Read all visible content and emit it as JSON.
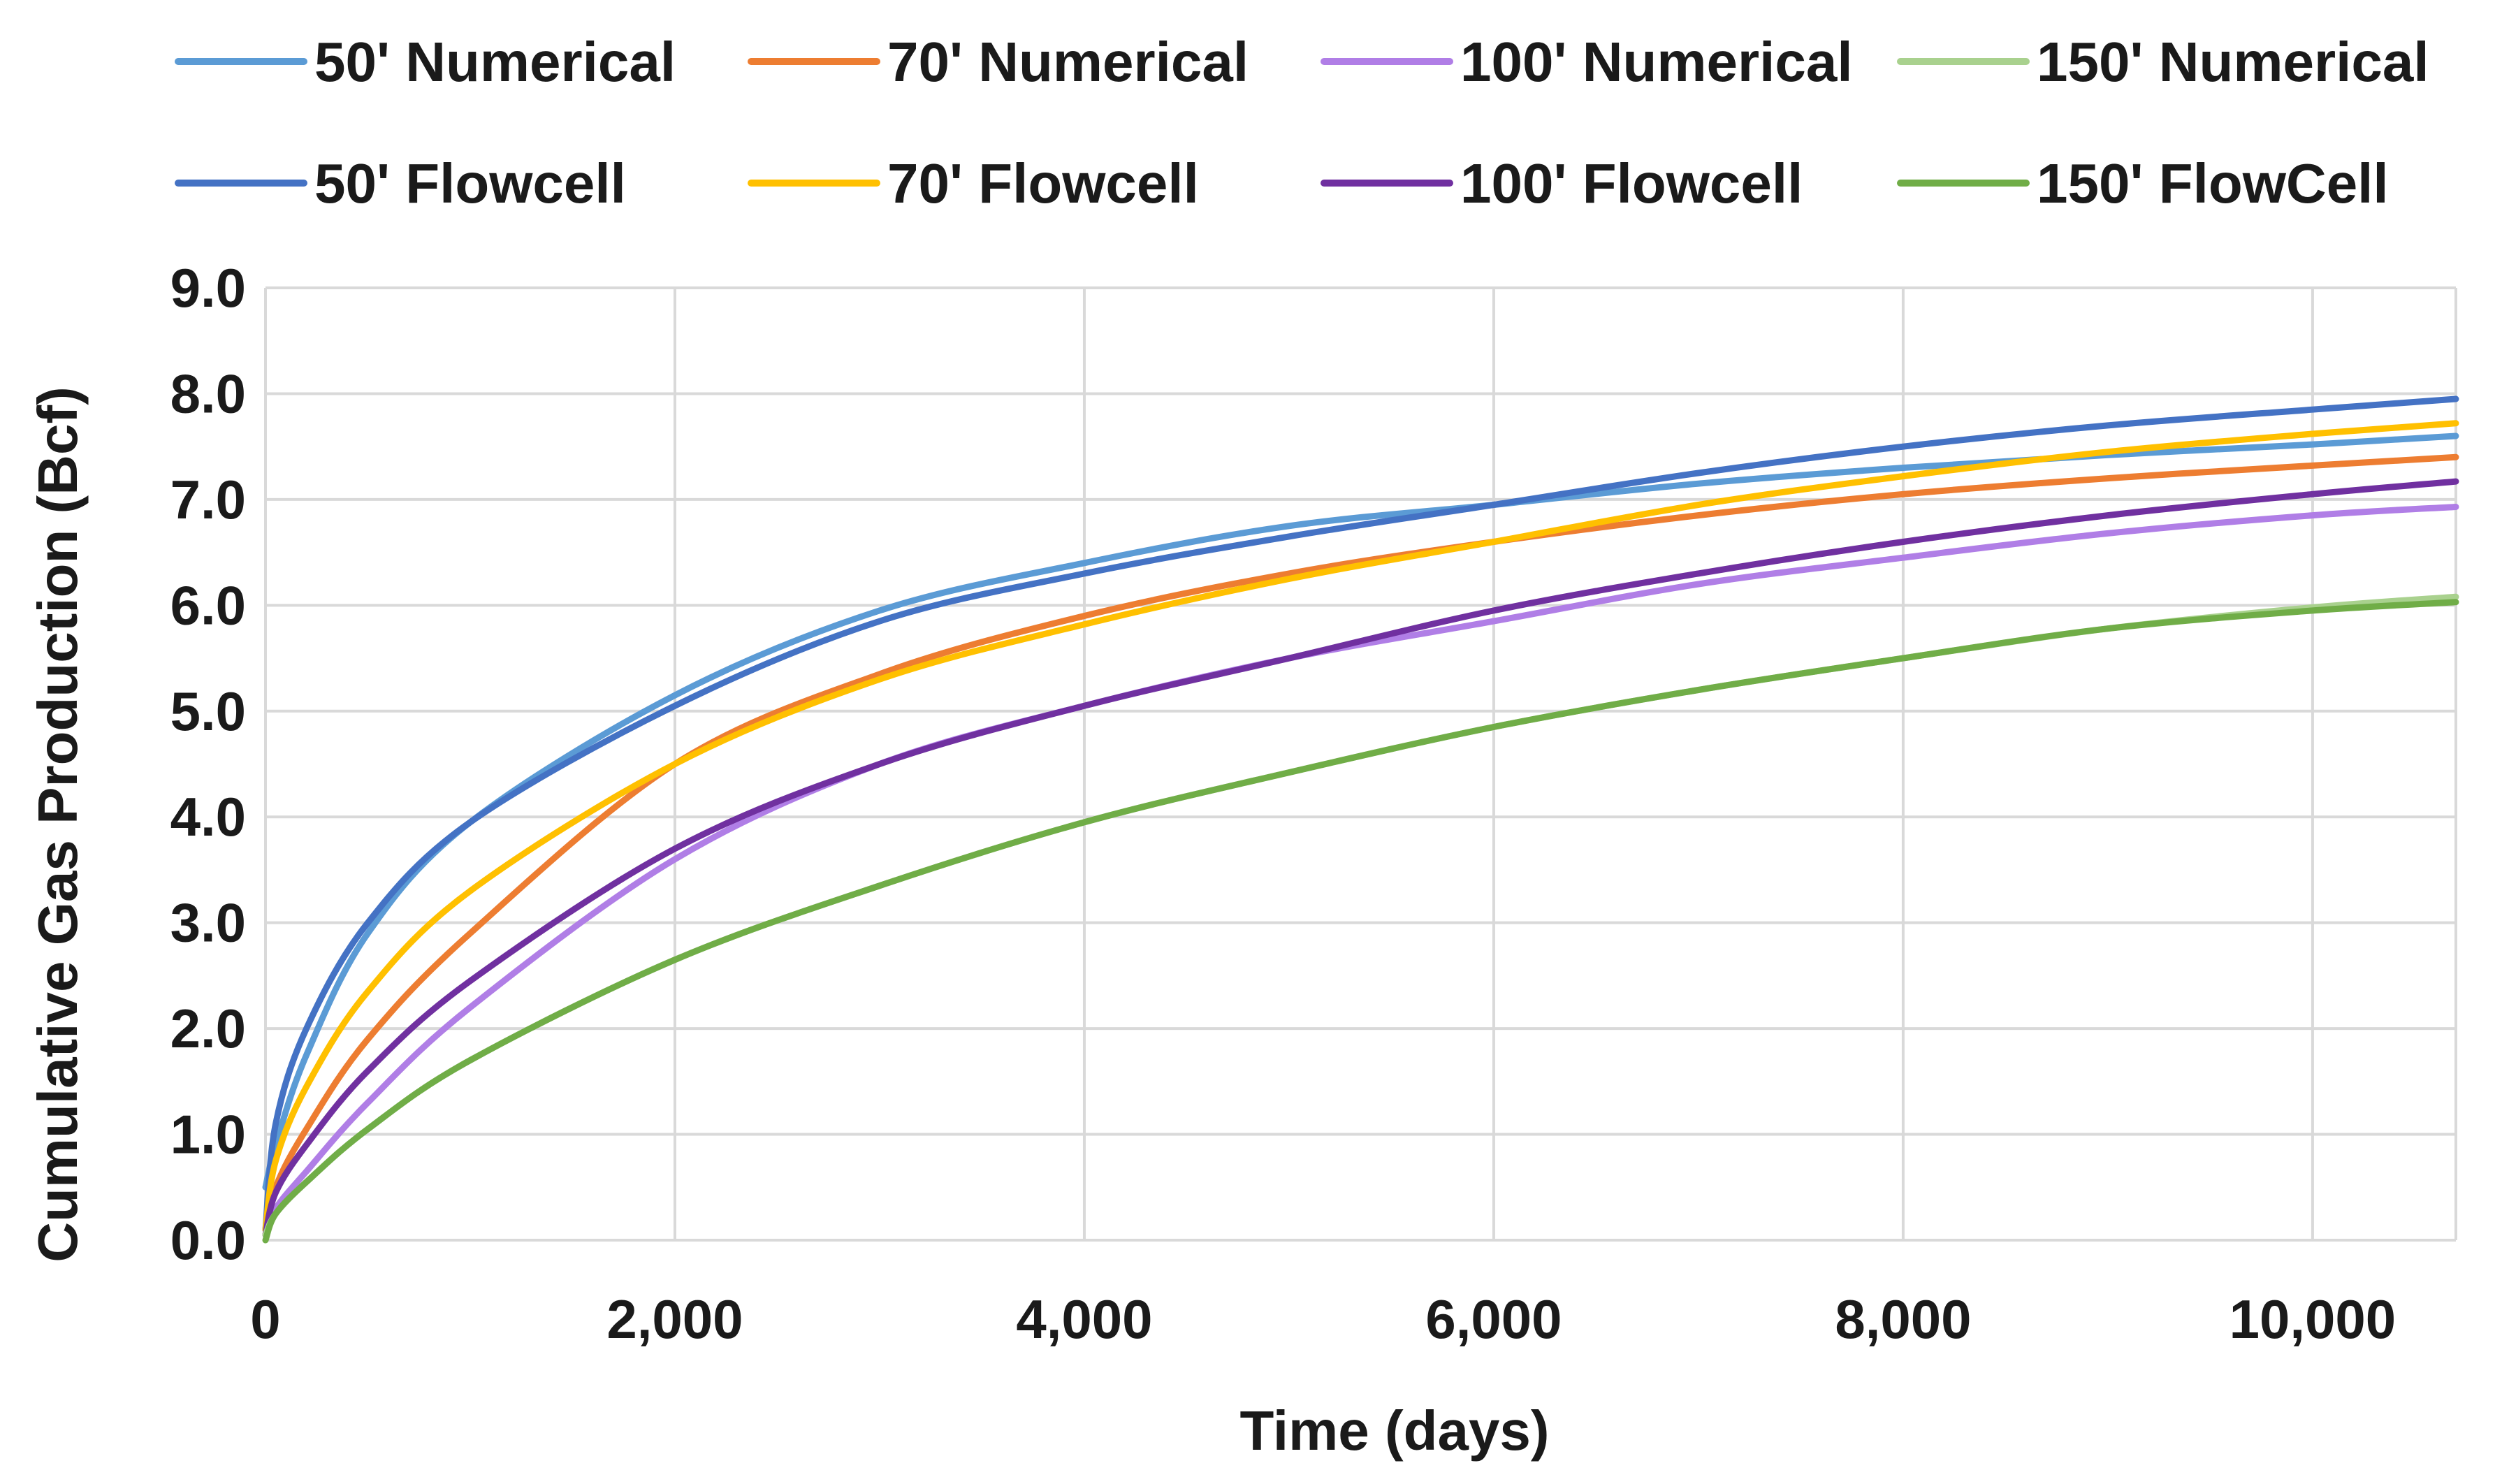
{
  "chart_data": {
    "type": "line",
    "title": "",
    "xlabel": "Time (days)",
    "ylabel": "Cumulative Gas Production (Bcf)",
    "xlim": [
      0,
      10700
    ],
    "ylim": [
      0,
      9
    ],
    "grid": true,
    "legend_position": "top",
    "x_ticks": [
      0,
      2000,
      4000,
      6000,
      8000,
      10000
    ],
    "x_tick_labels": [
      "0",
      "2,000",
      "4,000",
      "6,000",
      "8,000",
      "10,000"
    ],
    "y_ticks": [
      0,
      1,
      2,
      3,
      4,
      5,
      6,
      7,
      8,
      9
    ],
    "y_tick_labels": [
      "0.0",
      "1.0",
      "2.0",
      "3.0",
      "4.0",
      "5.0",
      "6.0",
      "7.0",
      "8.0",
      "9.0"
    ],
    "series": [
      {
        "name": "50' Numerical",
        "color": "#5b9bd5",
        "x": [
          0,
          50,
          200,
          500,
          1000,
          2000,
          3000,
          4000,
          5000,
          6000,
          7000,
          8000,
          9000,
          10000,
          10700
        ],
        "y": [
          0.5,
          0.9,
          1.75,
          2.9,
          3.95,
          5.15,
          5.95,
          6.4,
          6.75,
          6.95,
          7.15,
          7.3,
          7.42,
          7.52,
          7.6
        ]
      },
      {
        "name": "70' Numerical",
        "color": "#ed7d31",
        "x": [
          0,
          50,
          200,
          500,
          1000,
          2000,
          3000,
          4000,
          5000,
          6000,
          7000,
          8000,
          9000,
          10000,
          10700
        ],
        "y": [
          0.05,
          0.5,
          1.05,
          1.9,
          2.9,
          4.5,
          5.35,
          5.9,
          6.3,
          6.6,
          6.85,
          7.05,
          7.2,
          7.32,
          7.4
        ]
      },
      {
        "name": "100' Numerical",
        "color": "#b07ee6",
        "x": [
          0,
          50,
          200,
          500,
          1000,
          2000,
          3000,
          4000,
          5000,
          6000,
          7000,
          8000,
          9000,
          10000,
          10700
        ],
        "y": [
          0.05,
          0.3,
          0.65,
          1.3,
          2.2,
          3.6,
          4.5,
          5.05,
          5.5,
          5.85,
          6.2,
          6.45,
          6.68,
          6.85,
          6.93
        ]
      },
      {
        "name": "150' Numerical",
        "color": "#a9d18e",
        "x": [
          0,
          50,
          200,
          500,
          1000,
          2000,
          3000,
          4000,
          5000,
          6000,
          7000,
          8000,
          9000,
          10000,
          10700
        ],
        "y": [
          0.05,
          0.25,
          0.55,
          1.05,
          1.7,
          2.65,
          3.35,
          3.95,
          4.42,
          4.85,
          5.2,
          5.5,
          5.78,
          5.98,
          6.08
        ]
      },
      {
        "name": "50' Flowcell",
        "color": "#4472c4",
        "x": [
          0,
          50,
          200,
          500,
          1000,
          2000,
          3000,
          4000,
          5000,
          6000,
          7000,
          8000,
          9000,
          10000,
          10700
        ],
        "y": [
          0.1,
          1.1,
          2.0,
          3.0,
          3.95,
          5.05,
          5.85,
          6.3,
          6.65,
          6.95,
          7.25,
          7.5,
          7.7,
          7.85,
          7.95
        ]
      },
      {
        "name": "70' Flowcell",
        "color": "#ffc000",
        "x": [
          0,
          50,
          200,
          500,
          1000,
          2000,
          3000,
          4000,
          5000,
          6000,
          7000,
          8000,
          9000,
          10000,
          10700
        ],
        "y": [
          0.1,
          0.75,
          1.45,
          2.35,
          3.3,
          4.5,
          5.3,
          5.82,
          6.25,
          6.6,
          6.95,
          7.22,
          7.45,
          7.62,
          7.72
        ]
      },
      {
        "name": "100' Flowcell",
        "color": "#7030a0",
        "x": [
          0,
          50,
          200,
          500,
          1000,
          2000,
          3000,
          4000,
          5000,
          6000,
          7000,
          8000,
          9000,
          10000,
          10700
        ],
        "y": [
          0.05,
          0.45,
          0.9,
          1.6,
          2.45,
          3.7,
          4.5,
          5.05,
          5.5,
          5.95,
          6.3,
          6.6,
          6.85,
          7.05,
          7.17
        ]
      },
      {
        "name": "150' FlowCell",
        "color": "#70ad47",
        "x": [
          0,
          50,
          200,
          500,
          1000,
          2000,
          3000,
          4000,
          5000,
          6000,
          7000,
          8000,
          9000,
          10000,
          10700
        ],
        "y": [
          0.0,
          0.25,
          0.55,
          1.05,
          1.7,
          2.65,
          3.35,
          3.95,
          4.42,
          4.85,
          5.2,
          5.5,
          5.78,
          5.95,
          6.03
        ]
      }
    ]
  }
}
